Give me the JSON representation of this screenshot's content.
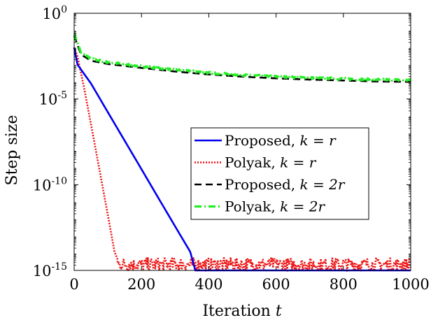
{
  "chart_data": {
    "type": "line",
    "xlabel": "Iteration",
    "xlabel_var": "t",
    "ylabel": "Step size",
    "xlim": [
      0,
      1000
    ],
    "ylim": [
      1e-15,
      1
    ],
    "yscale": "log",
    "xticks": [
      "0",
      "200",
      "400",
      "600",
      "800",
      "1000"
    ],
    "yticks": [
      {
        "base": "10",
        "exp": "-15",
        "value": 1e-15
      },
      {
        "base": "10",
        "exp": "-10",
        "value": 1e-10
      },
      {
        "base": "10",
        "exp": "-5",
        "value": 1e-05
      },
      {
        "base": "10",
        "exp": "0",
        "value": 1
      }
    ],
    "grid": false,
    "legend_position": "center-right",
    "series": [
      {
        "name": "Proposed, k = r",
        "name_prefix": "Proposed, ",
        "name_math": "k = r",
        "color": "#0000ee",
        "style": "solid",
        "x": [
          0,
          10,
          50,
          100,
          150,
          200,
          250,
          300,
          345,
          360,
          1000
        ],
        "y": [
          0.01,
          0.001,
          8e-05,
          1.7e-06,
          3.7e-08,
          8e-10,
          1.7e-11,
          3.7e-13,
          1.2e-14,
          1e-15,
          1e-15
        ]
      },
      {
        "name": "Polyak, k = r",
        "name_prefix": "Polyak, ",
        "name_math": "k = r",
        "color": "#ee1111",
        "style": "dotted",
        "noise": "high-frequency fluctuation between about 1e-15 and 1e-14 after convergence",
        "x": [
          0,
          10,
          30,
          60,
          90,
          120,
          130,
          1000
        ],
        "y": [
          0.01,
          0.003,
          4e-05,
          3e-08,
          2e-11,
          1.2e-14,
          4e-15,
          4e-15
        ]
      },
      {
        "name": "Proposed, k = 2r",
        "name_prefix": "Proposed, ",
        "name_math": "k = 2r",
        "color": "#000000",
        "style": "dashed",
        "x": [
          0,
          20,
          50,
          100,
          200,
          300,
          400,
          500,
          600,
          700,
          800,
          900,
          1000
        ],
        "y": [
          0.05,
          0.004,
          0.0017,
          0.0011,
          0.00065,
          0.0004,
          0.00027,
          0.0002,
          0.00016,
          0.000135,
          0.00012,
          0.000105,
          0.0001
        ]
      },
      {
        "name": "Polyak, k = 2r",
        "name_prefix": "Polyak, ",
        "name_math": "k = 2r",
        "color": "#22ee22",
        "style": "dashdot",
        "noise": "slight fluctuation around the trend",
        "x": [
          0,
          20,
          50,
          100,
          200,
          300,
          400,
          500,
          600,
          700,
          800,
          900,
          1000
        ],
        "y": [
          0.07,
          0.005,
          0.0022,
          0.0014,
          0.0008,
          0.0005,
          0.00034,
          0.00025,
          0.0002,
          0.00017,
          0.00015,
          0.000135,
          0.000125
        ]
      }
    ]
  }
}
